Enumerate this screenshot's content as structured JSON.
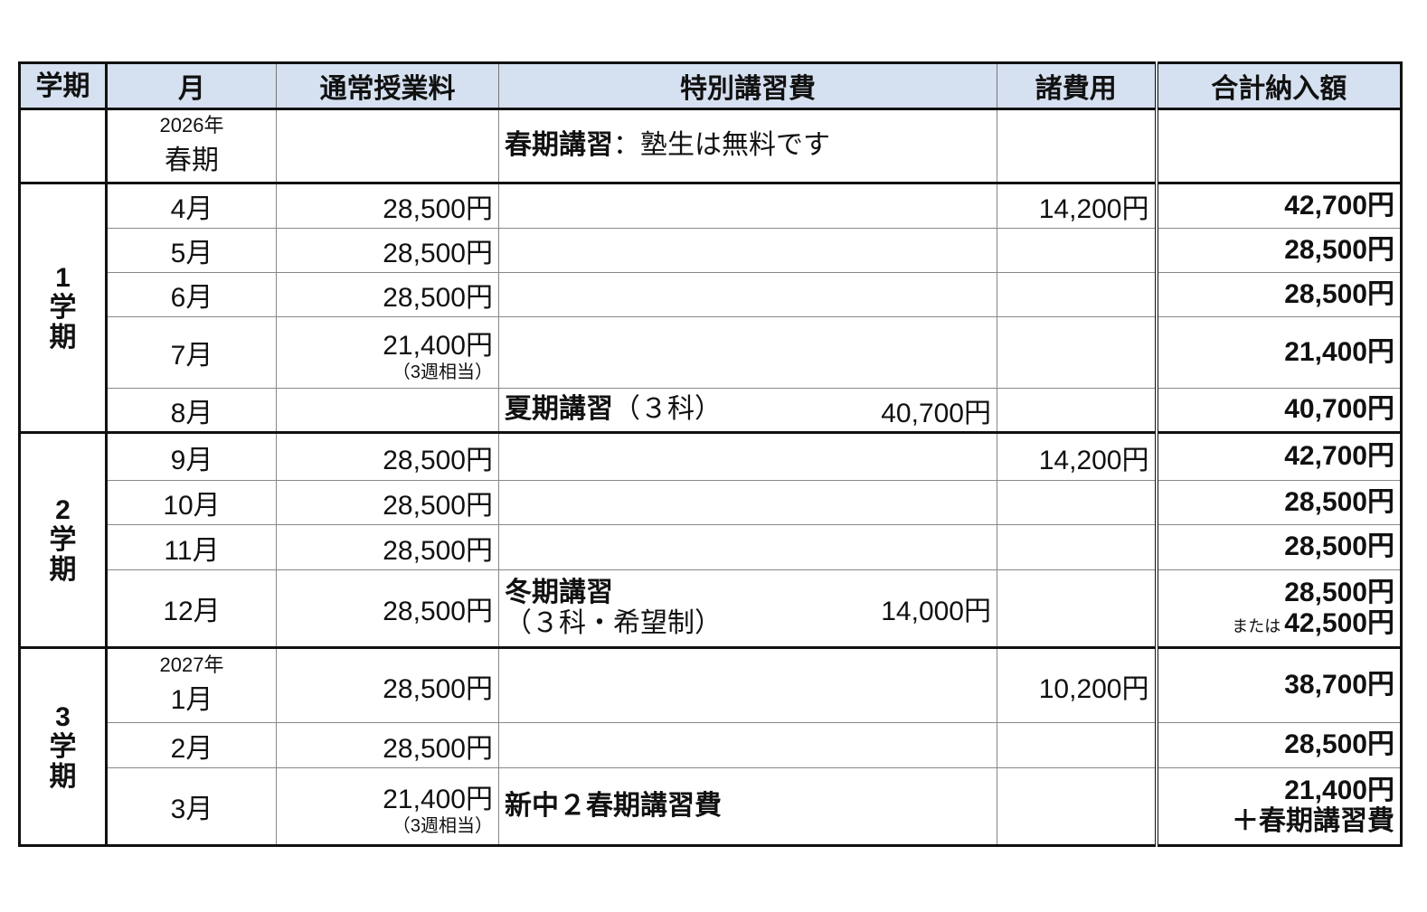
{
  "header": {
    "term": "学期",
    "month": "月",
    "tuition": "通常授業料",
    "special": "特別講習費",
    "misc": "諸費用",
    "total": "合計納入額"
  },
  "terms": [
    {
      "label": "",
      "start": 0,
      "span": 1
    },
    {
      "label": "1\n学\n期",
      "start": 1,
      "span": 5
    },
    {
      "label": "2\n学\n期",
      "start": 6,
      "span": 4
    },
    {
      "label": "3\n学\n期",
      "start": 10,
      "span": 3
    }
  ],
  "rows": [
    {
      "year": "2026年",
      "month": "春期",
      "tuition": "",
      "tuition_note": "",
      "special_title": "春期講習",
      "special_sub": "：塾生は無料です",
      "special_amount": "",
      "misc": "",
      "total": "",
      "total_prefix": "",
      "total2": ""
    },
    {
      "month": "4月",
      "tuition": "28,500円",
      "misc": "14,200円",
      "total": "42,700円"
    },
    {
      "month": "5月",
      "tuition": "28,500円",
      "total": "28,500円"
    },
    {
      "month": "6月",
      "tuition": "28,500円",
      "total": "28,500円"
    },
    {
      "month": "7月",
      "tuition": "21,400円",
      "tuition_note": "（3週相当）",
      "total": "21,400円"
    },
    {
      "month": "8月",
      "tuition": "",
      "special_title": "夏期講習",
      "special_sub": "（３科）",
      "special_amount": "40,700円",
      "total": "40,700円"
    },
    {
      "month": "9月",
      "tuition": "28,500円",
      "misc": "14,200円",
      "total": "42,700円"
    },
    {
      "month": "10月",
      "tuition": "28,500円",
      "total": "28,500円"
    },
    {
      "month": "11月",
      "tuition": "28,500円",
      "total": "28,500円"
    },
    {
      "month": "12月",
      "tuition": "28,500円",
      "special_title": "冬期講習",
      "special_sub": "（３科・希望制）",
      "special_amount": "14,000円",
      "total": "28,500円",
      "total_prefix": "または",
      "total2": "42,500円"
    },
    {
      "year": "2027年",
      "month": "1月",
      "tuition": "28,500円",
      "misc": "10,200円",
      "total": "38,700円"
    },
    {
      "month": "2月",
      "tuition": "28,500円",
      "total": "28,500円"
    },
    {
      "month": "3月",
      "tuition": "21,400円",
      "tuition_note": "（3週相当）",
      "special_title": "新中２春期講習費",
      "total": "21,400円",
      "total2": "＋春期講習費"
    }
  ]
}
